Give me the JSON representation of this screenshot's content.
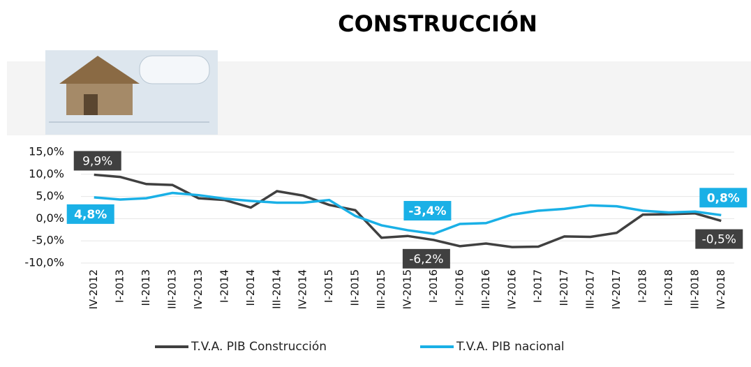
{
  "chart_data": {
    "type": "line",
    "title": "CONSTRUCCIÓN",
    "categories": [
      "IV-2012",
      "I-2013",
      "II-2013",
      "III-2013",
      "IV-2013",
      "I-2014",
      "II-2014",
      "III-2014",
      "IV-2014",
      "I-2015",
      "II-2015",
      "III-2015",
      "IV-2015",
      "I-2016",
      "II-2016",
      "III-2016",
      "IV-2016",
      "I-2017",
      "II-2017",
      "III-2017",
      "IV-2017",
      "I-2018",
      "II-2018",
      "III-2018",
      "IV-2018"
    ],
    "series": [
      {
        "name": "T.V.A. PIB Construcción",
        "color": "#404040",
        "values": [
          9.9,
          9.4,
          7.8,
          7.6,
          4.6,
          4.2,
          2.5,
          6.2,
          5.2,
          3.1,
          1.9,
          -4.3,
          -3.9,
          -4.8,
          -6.2,
          -5.6,
          -6.4,
          -6.3,
          -4.0,
          -4.1,
          -3.2,
          0.9,
          1.0,
          1.2,
          -0.5
        ],
        "value_labels": [
          "9,9%",
          null,
          null,
          null,
          null,
          null,
          null,
          null,
          null,
          null,
          null,
          null,
          null,
          null,
          "-6,2%",
          null,
          null,
          null,
          null,
          null,
          null,
          null,
          null,
          null,
          "-0,5%"
        ]
      },
      {
        "name": "T.V.A. PIB nacional",
        "color": "#1ab0e6",
        "values": [
          4.8,
          4.3,
          4.6,
          5.8,
          5.3,
          4.5,
          4.0,
          3.6,
          3.6,
          4.2,
          0.6,
          -1.5,
          -2.6,
          -3.4,
          -1.2,
          -1.0,
          0.9,
          1.8,
          2.2,
          3.0,
          2.8,
          1.8,
          1.4,
          1.6,
          0.8
        ],
        "value_labels": [
          "4,8%",
          null,
          null,
          null,
          null,
          null,
          null,
          null,
          null,
          null,
          null,
          null,
          null,
          "-3,4%",
          null,
          null,
          null,
          null,
          null,
          null,
          null,
          null,
          null,
          null,
          "0,8%"
        ]
      }
    ],
    "ylim": [
      -10,
      15
    ],
    "yticks": [
      {
        "value": -10,
        "label": "-10,0%"
      },
      {
        "value": -5,
        "label": "-5,0%"
      },
      {
        "value": 0,
        "label": "0,0%"
      },
      {
        "value": 5,
        "label": "5,0%"
      },
      {
        "value": 10,
        "label": "10,0%"
      },
      {
        "value": 15,
        "label": "15,0%"
      }
    ],
    "grid": true,
    "legend": "bottom"
  }
}
